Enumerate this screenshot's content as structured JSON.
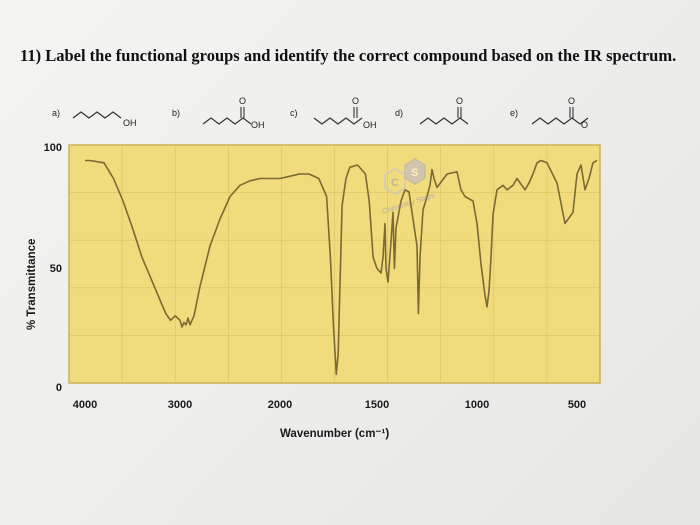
{
  "question": "11) Label the functional groups and identify the correct compound based on the IR spectrum.",
  "options": [
    {
      "letter": "a)",
      "atom_labels": [
        "OH"
      ]
    },
    {
      "letter": "b)",
      "atom_labels": [
        "O",
        "OH"
      ]
    },
    {
      "letter": "c)",
      "atom_labels": [
        "O",
        "OH"
      ]
    },
    {
      "letter": "d)",
      "atom_labels": [
        "O"
      ]
    },
    {
      "letter": "e)",
      "atom_labels": [
        "O",
        "O"
      ]
    }
  ],
  "watermark": {
    "letters": [
      "C",
      "S"
    ],
    "text": "Chemistry Steps"
  },
  "colors": {
    "plot_bg": "#f0dc7c",
    "trace": "#7a6a34",
    "frame": "#c9b35a",
    "grid": "#d6c265"
  },
  "chart_data": {
    "type": "line",
    "title": "",
    "xlabel": "Wavenumber (cm⁻¹)",
    "ylabel": "% Transmittance",
    "xlim": [
      4000,
      400
    ],
    "ylim": [
      0,
      100
    ],
    "x_reversed": true,
    "grid": true,
    "x_tick_labels": [
      "4000",
      "3000",
      "2000",
      "1500",
      "1000",
      "500"
    ],
    "x_ticks": [
      4000,
      3000,
      2000,
      1500,
      1000,
      500
    ],
    "y_tick_labels": [
      "0",
      "50",
      "100"
    ],
    "y_ticks": [
      0,
      50,
      100
    ],
    "series": [
      {
        "x": [
          4000,
          3950,
          3800,
          3700,
          3600,
          3500,
          3400,
          3300,
          3200,
          3150,
          3100,
          3050,
          3000,
          2980,
          2960,
          2940,
          2920,
          2900,
          2880,
          2860,
          2800,
          2700,
          2600,
          2500,
          2400,
          2300,
          2200,
          2100,
          2000,
          1950,
          1900,
          1850,
          1800,
          1760,
          1740,
          1725,
          1710,
          1700,
          1690,
          1680,
          1660,
          1640,
          1600,
          1560,
          1540,
          1520,
          1500,
          1480,
          1470,
          1460,
          1455,
          1445,
          1430,
          1420,
          1413,
          1405,
          1380,
          1360,
          1340,
          1300,
          1293,
          1285,
          1270,
          1250,
          1235,
          1225,
          1215,
          1200,
          1150,
          1100,
          1080,
          1060,
          1020,
          1000,
          980,
          960,
          950,
          940,
          930,
          920,
          900,
          870,
          850,
          820,
          800,
          760,
          740,
          720,
          700,
          680,
          650,
          600,
          560,
          520,
          500,
          480,
          460,
          440,
          420,
          400
        ],
        "y": [
          98,
          98,
          97,
          90,
          80,
          68,
          55,
          45,
          35,
          30,
          27,
          29,
          27,
          24,
          26,
          25,
          28,
          25,
          27,
          29,
          42,
          60,
          72,
          82,
          87,
          89,
          90,
          90,
          90,
          91,
          92,
          92,
          90,
          82,
          55,
          25,
          3,
          12,
          45,
          78,
          90,
          95,
          96,
          92,
          80,
          55,
          50,
          48,
          55,
          70,
          50,
          44,
          62,
          75,
          50,
          68,
          80,
          85,
          84,
          60,
          30,
          55,
          76,
          82,
          87,
          94,
          90,
          86,
          92,
          93,
          85,
          82,
          80,
          70,
          52,
          38,
          33,
          40,
          55,
          74,
          85,
          87,
          85,
          87,
          90,
          85,
          88,
          92,
          97,
          98,
          97,
          88,
          70,
          75,
          92,
          96,
          85,
          90,
          97,
          98
        ]
      }
    ]
  }
}
